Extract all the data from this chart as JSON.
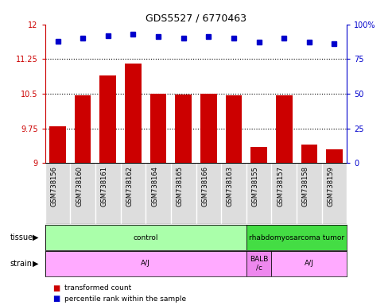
{
  "title": "GDS5527 / 6770463",
  "samples": [
    "GSM738156",
    "GSM738160",
    "GSM738161",
    "GSM738162",
    "GSM738164",
    "GSM738165",
    "GSM738166",
    "GSM738163",
    "GSM738155",
    "GSM738157",
    "GSM738158",
    "GSM738159"
  ],
  "bar_values": [
    9.8,
    10.47,
    10.9,
    11.15,
    10.5,
    10.48,
    10.5,
    10.47,
    9.35,
    10.47,
    9.4,
    9.3
  ],
  "dot_values": [
    88,
    90,
    92,
    93,
    91,
    90,
    91,
    90,
    87,
    90,
    87,
    86
  ],
  "ylim_left": [
    9.0,
    12.0
  ],
  "ylim_right": [
    0,
    100
  ],
  "yticks_left": [
    9.0,
    9.75,
    10.5,
    11.25,
    12.0
  ],
  "ytick_labels_left": [
    "9",
    "9.75",
    "10.5",
    "11.25",
    "12"
  ],
  "yticks_right": [
    0,
    25,
    50,
    75,
    100
  ],
  "ytick_labels_right": [
    "0",
    "25",
    "50",
    "75",
    "100%"
  ],
  "hlines": [
    9.75,
    10.5,
    11.25
  ],
  "bar_color": "#cc0000",
  "dot_color": "#0000cc",
  "bar_bottom": 9.0,
  "tissue_groups": [
    {
      "label": "control",
      "start": 0,
      "end": 8,
      "color": "#aaffaa"
    },
    {
      "label": "rhabdomyosarcoma tumor",
      "start": 8,
      "end": 12,
      "color": "#44dd44"
    }
  ],
  "strain_groups": [
    {
      "label": "A/J",
      "start": 0,
      "end": 8,
      "color": "#ffaaff"
    },
    {
      "label": "BALB\n/c",
      "start": 8,
      "end": 9,
      "color": "#ee88ee"
    },
    {
      "label": "A/J",
      "start": 9,
      "end": 12,
      "color": "#ffaaff"
    }
  ],
  "legend_items": [
    {
      "label": "transformed count",
      "color": "#cc0000"
    },
    {
      "label": "percentile rank within the sample",
      "color": "#0000cc"
    }
  ],
  "panel_bg": "#dddddd",
  "plot_bg": "#ffffff",
  "n_samples": 12
}
